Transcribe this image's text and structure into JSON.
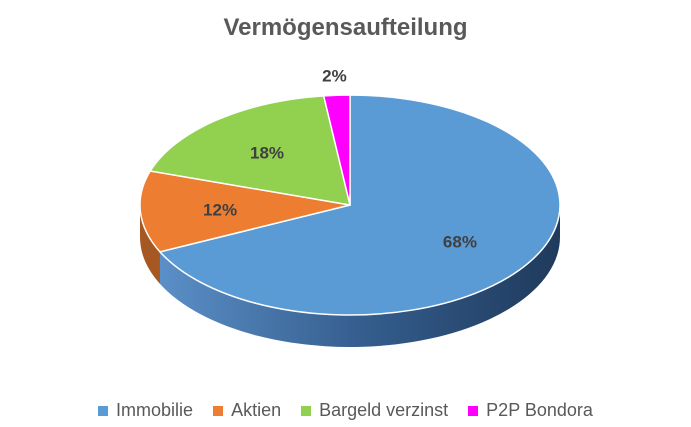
{
  "chart_data": {
    "type": "pie",
    "title": "Vermögensaufteilung",
    "legend_position": "bottom",
    "slices": [
      {
        "label": "Immobilie",
        "value": 68,
        "value_label": "68%",
        "color": "#5B9BD5"
      },
      {
        "label": "Aktien",
        "value": 12,
        "value_label": "12%",
        "color": "#ED7D31"
      },
      {
        "label": "Bargeld verzinst",
        "value": 18,
        "value_label": "18%",
        "color": "#92D050"
      },
      {
        "label": "P2P Bondora",
        "value": 2,
        "value_label": "2%",
        "color": "#FF00FF"
      }
    ]
  }
}
